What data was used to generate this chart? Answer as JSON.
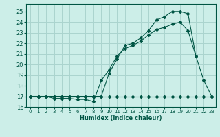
{
  "xlabel": "Humidex (Indice chaleur)",
  "bg_color": "#cceee8",
  "grid_color": "#aad4ce",
  "line_color": "#005544",
  "xlim": [
    -0.5,
    23.5
  ],
  "ylim": [
    16.0,
    25.7
  ],
  "yticks": [
    16,
    17,
    18,
    19,
    20,
    21,
    22,
    23,
    24,
    25
  ],
  "xticks": [
    0,
    1,
    2,
    3,
    4,
    5,
    6,
    7,
    8,
    9,
    10,
    11,
    12,
    13,
    14,
    15,
    16,
    17,
    18,
    19,
    20,
    21,
    22,
    23
  ],
  "series": [
    {
      "x": [
        0,
        1,
        2,
        3,
        4,
        5,
        6,
        7,
        8,
        9,
        10,
        11,
        12,
        13,
        14,
        15,
        16,
        17,
        18,
        19,
        20,
        21,
        22,
        23
      ],
      "y": [
        17.0,
        17.0,
        17.0,
        17.0,
        17.0,
        17.0,
        17.0,
        17.0,
        17.0,
        17.0,
        17.0,
        17.0,
        17.0,
        17.0,
        17.0,
        17.0,
        17.0,
        17.0,
        17.0,
        17.0,
        17.0,
        17.0,
        17.0,
        17.0
      ]
    },
    {
      "x": [
        0,
        1,
        2,
        3,
        4,
        5,
        6,
        7,
        8,
        9,
        10,
        11,
        12,
        13,
        14,
        15,
        16,
        17,
        18,
        19,
        20,
        21,
        22,
        23
      ],
      "y": [
        17.0,
        17.0,
        17.0,
        16.8,
        16.8,
        16.8,
        16.7,
        16.7,
        16.5,
        18.5,
        19.5,
        20.8,
        21.5,
        21.8,
        22.2,
        22.8,
        23.3,
        23.5,
        23.8,
        24.0,
        23.2,
        20.8,
        null,
        null
      ]
    },
    {
      "x": [
        0,
        1,
        2,
        3,
        4,
        5,
        6,
        7,
        8,
        9,
        10,
        11,
        12,
        13,
        14,
        15,
        16,
        17,
        18,
        19,
        20,
        21,
        22,
        23
      ],
      "y": [
        17.0,
        17.0,
        17.0,
        17.0,
        17.0,
        17.0,
        17.0,
        17.0,
        17.0,
        17.0,
        19.2,
        20.5,
        21.8,
        22.0,
        22.5,
        23.2,
        24.2,
        24.5,
        25.0,
        25.0,
        24.8,
        20.8,
        18.5,
        17.0
      ]
    }
  ]
}
